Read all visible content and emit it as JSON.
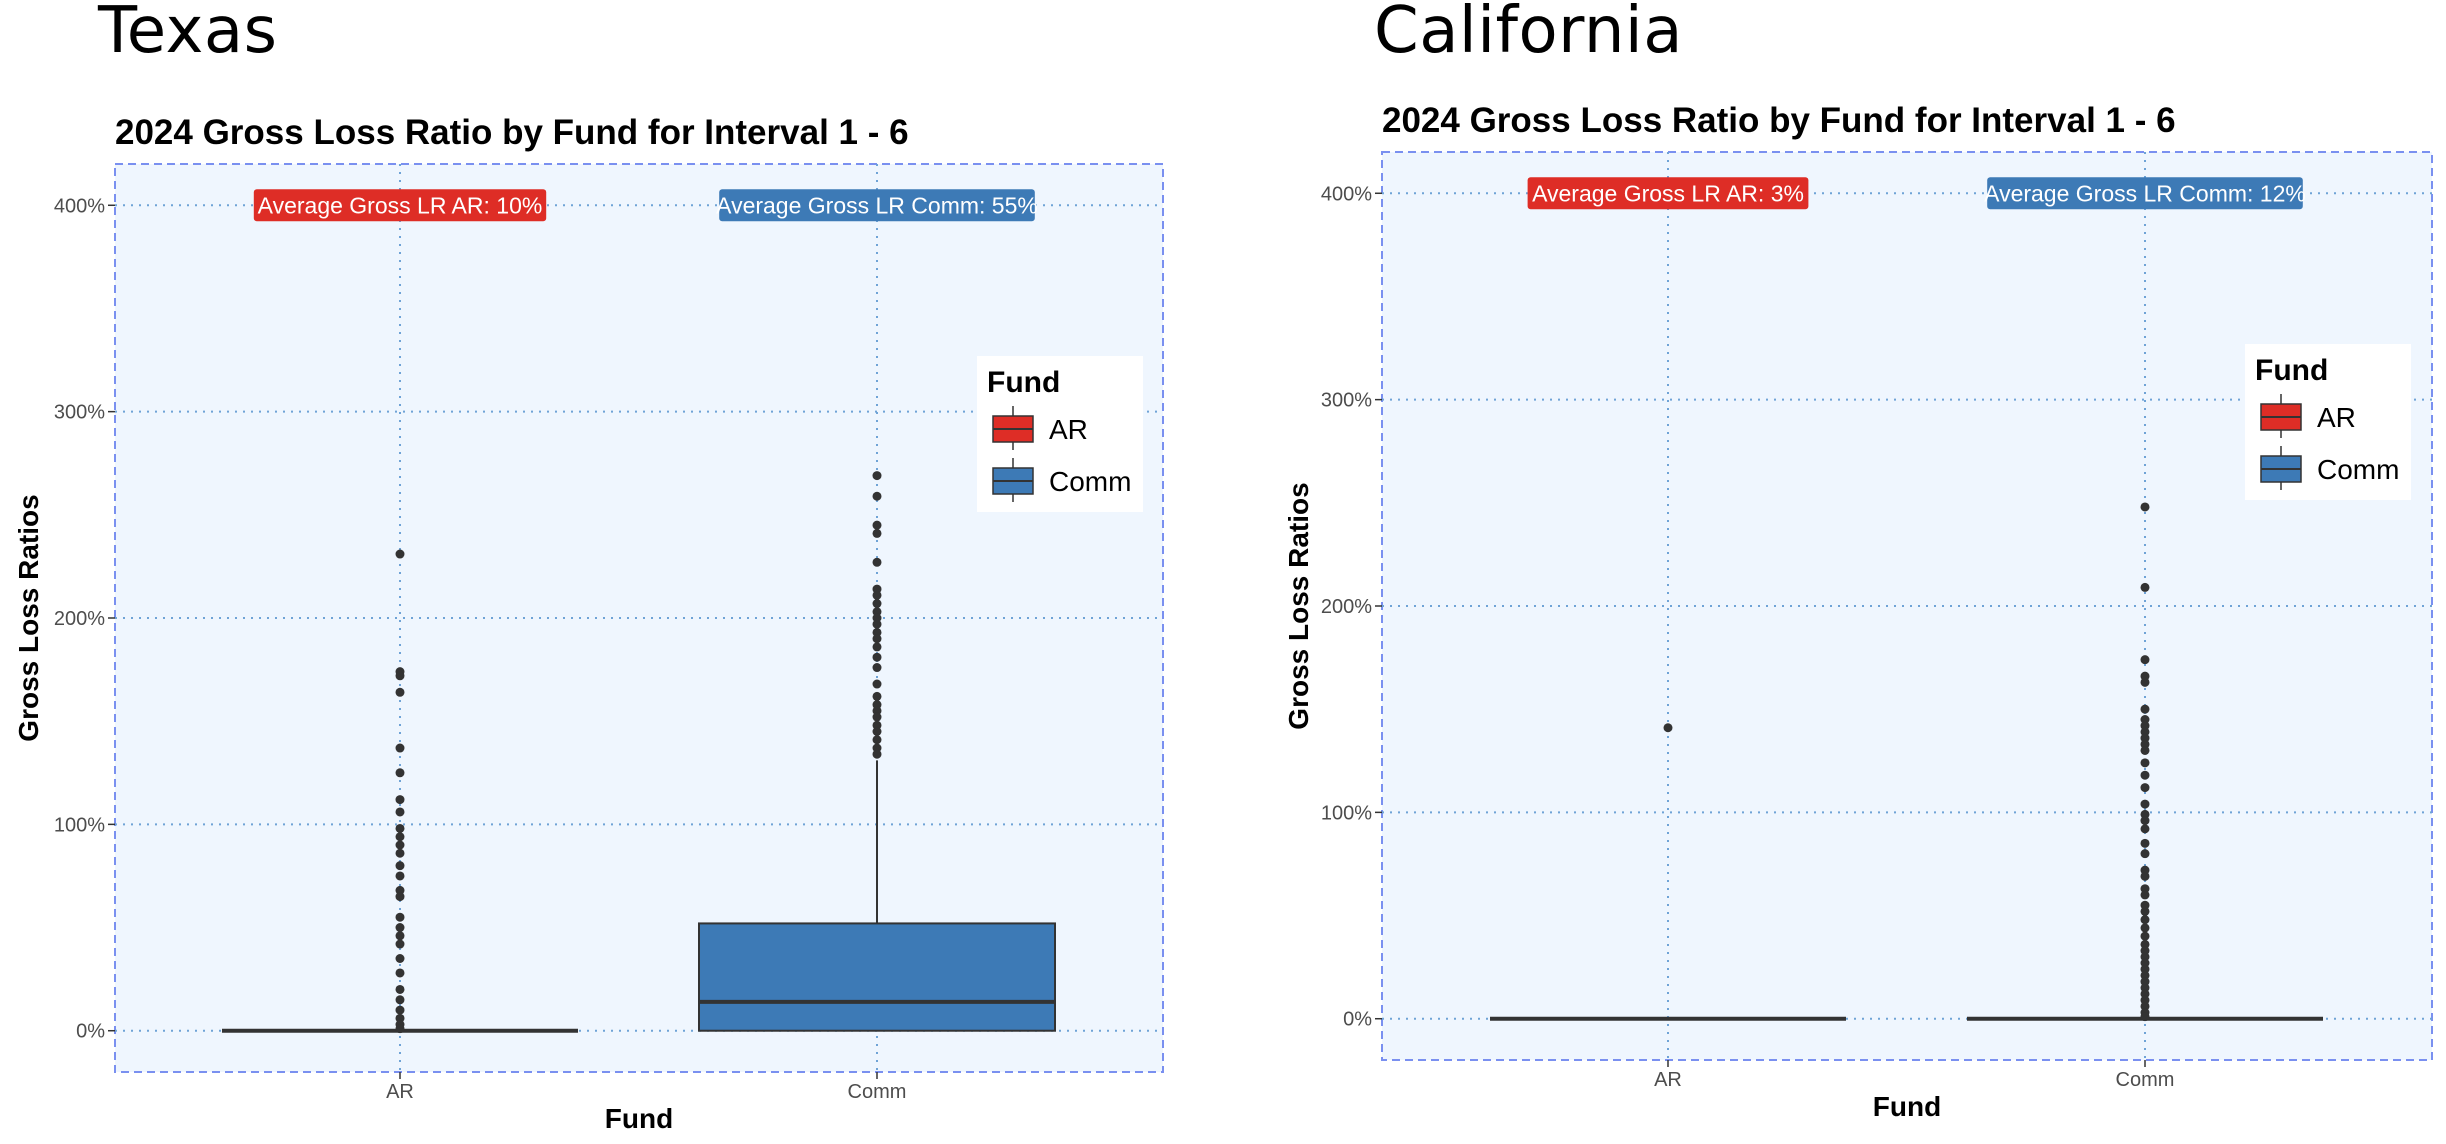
{
  "panels": [
    {
      "state_title": "Texas"
    },
    {
      "state_title": "California"
    }
  ],
  "colors": {
    "AR": "#DE2D26",
    "Comm": "#3D7AB6",
    "panel_bg": "#EFF6FE",
    "grid": "#6FA3D6",
    "border": "#7A90F0"
  },
  "chart_data": [
    {
      "type": "box",
      "title": "2024 Gross Loss Ratio by Fund for Interval 1 - 6",
      "xlabel": "Fund",
      "ylabel": "Gross Loss Ratios",
      "categories": [
        "AR",
        "Comm"
      ],
      "y_ticks": [
        0,
        100,
        200,
        300,
        400
      ],
      "y_tick_labels": [
        "0%",
        "100%",
        "200%",
        "300%",
        "400%"
      ],
      "ylim": [
        -20,
        420
      ],
      "grid": "dotted",
      "legend": {
        "title": "Fund",
        "entries": [
          "AR",
          "Comm"
        ],
        "placement": "right"
      },
      "annotations": [
        {
          "text": "Average Gross LR AR: 10%",
          "category": "AR",
          "y": 400
        },
        {
          "text": "Average Gross LR Comm: 55%",
          "category": "Comm",
          "y": 400
        }
      ],
      "boxes": [
        {
          "category": "AR",
          "q1": 0,
          "median": 0,
          "q3": 0,
          "whisker_low": 0,
          "whisker_high": 0,
          "outliers": [
            231,
            174,
            172,
            164,
            137,
            125,
            112,
            106,
            98,
            94,
            90,
            86,
            80,
            75,
            68,
            65,
            55,
            50,
            46,
            42,
            35,
            28,
            20,
            15,
            10,
            6,
            3,
            1
          ]
        },
        {
          "category": "Comm",
          "q1": 0,
          "median": 14,
          "q3": 52,
          "whisker_low": 0,
          "whisker_high": 131,
          "outliers": [
            269,
            259,
            245,
            241,
            227,
            214,
            211,
            207,
            203,
            200,
            197,
            193,
            190,
            186,
            181,
            176,
            168,
            162,
            158,
            155,
            152,
            148,
            145,
            141,
            137,
            134
          ]
        }
      ]
    },
    {
      "type": "box",
      "title": "2024 Gross Loss Ratio by Fund for Interval 1 - 6",
      "xlabel": "Fund",
      "ylabel": "Gross Loss Ratios",
      "categories": [
        "AR",
        "Comm"
      ],
      "y_ticks": [
        0,
        100,
        200,
        300,
        400
      ],
      "y_tick_labels": [
        "0%",
        "100%",
        "200%",
        "300%",
        "400%"
      ],
      "ylim": [
        -20,
        420
      ],
      "grid": "dotted",
      "legend": {
        "title": "Fund",
        "entries": [
          "AR",
          "Comm"
        ],
        "placement": "right"
      },
      "annotations": [
        {
          "text": "Average Gross LR AR: 3%",
          "category": "AR",
          "y": 400
        },
        {
          "text": "Average Gross LR Comm: 12%",
          "category": "Comm",
          "y": 400
        }
      ],
      "boxes": [
        {
          "category": "AR",
          "q1": 0,
          "median": 0,
          "q3": 0,
          "whisker_low": 0,
          "whisker_high": 0,
          "outliers": [
            141
          ]
        },
        {
          "category": "Comm",
          "q1": 0,
          "median": 0,
          "q3": 0,
          "whisker_low": 0,
          "whisker_high": 0,
          "outliers": [
            248,
            209,
            174,
            166,
            163,
            150,
            145,
            142,
            139,
            136,
            133,
            130,
            124,
            118,
            112,
            104,
            99,
            96,
            92,
            85,
            80,
            72,
            69,
            63,
            60,
            55,
            52,
            48,
            44,
            40,
            36,
            33,
            30,
            27,
            24,
            21,
            18,
            15,
            12,
            9,
            6,
            3,
            1
          ]
        }
      ]
    }
  ]
}
